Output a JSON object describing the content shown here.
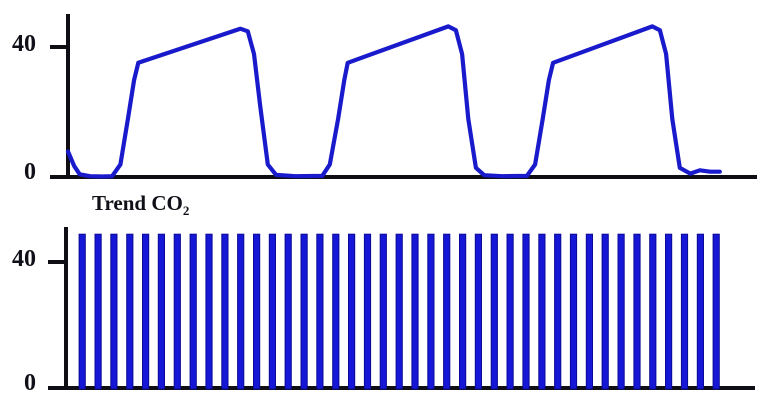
{
  "colors": {
    "trace_blue": "#1a1acd",
    "bar_blue": "#1616d6",
    "bar_edge": "#0a0a96",
    "axis_black": "#0e0e14",
    "label_color": "#101018",
    "background": "#ffffff"
  },
  "top_chart": {
    "y_tick_upper": "40",
    "y_tick_zero": "0"
  },
  "trend_chart": {
    "title": "Trend CO",
    "title_sub": "2",
    "y_tick_upper": "40",
    "y_tick_zero": "0"
  },
  "chart_data": [
    {
      "type": "line",
      "title": "",
      "ylabel": "",
      "xlabel": "",
      "y_ticks": [
        0,
        40
      ],
      "ylim": [
        0,
        50
      ],
      "legend": "none",
      "grid": false,
      "points": [
        [
          0,
          8
        ],
        [
          0.9,
          3.5
        ],
        [
          1.7,
          1
        ],
        [
          3.2,
          0.4
        ],
        [
          5.0,
          0.3
        ],
        [
          6.4,
          0.4
        ],
        [
          7.6,
          4
        ],
        [
          8.7,
          18
        ],
        [
          9.6,
          30
        ],
        [
          10.2,
          35.3
        ],
        [
          25.0,
          45.8
        ],
        [
          26.1,
          45.0
        ],
        [
          27.0,
          38
        ],
        [
          27.9,
          22
        ],
        [
          29.0,
          4
        ],
        [
          30.2,
          0.8
        ],
        [
          33.0,
          0.4
        ],
        [
          36.9,
          0.5
        ],
        [
          38.0,
          4
        ],
        [
          39.2,
          18
        ],
        [
          40.1,
          30
        ],
        [
          40.6,
          35.3
        ],
        [
          55.2,
          46.5
        ],
        [
          56.3,
          45.3
        ],
        [
          57.2,
          38
        ],
        [
          58.1,
          18
        ],
        [
          59.2,
          3
        ],
        [
          60.4,
          0.7
        ],
        [
          63.0,
          0.4
        ],
        [
          66.6,
          0.5
        ],
        [
          67.8,
          4
        ],
        [
          68.9,
          18
        ],
        [
          69.8,
          30
        ],
        [
          70.4,
          35.3
        ],
        [
          84.8,
          46.5
        ],
        [
          85.9,
          45.3
        ],
        [
          86.8,
          38
        ],
        [
          87.7,
          18
        ],
        [
          88.8,
          3
        ],
        [
          90.3,
          1.2
        ],
        [
          91.7,
          2.2
        ],
        [
          93.2,
          1.8
        ],
        [
          94.6,
          1.8
        ]
      ]
    },
    {
      "type": "bar",
      "title": "Trend CO2",
      "y_ticks": [
        0,
        40
      ],
      "ylim": [
        0,
        50
      ],
      "bar_count": 41,
      "values": [
        49,
        49,
        49,
        49,
        49,
        49,
        49,
        49,
        49,
        49,
        49,
        49,
        49,
        49,
        49,
        49,
        49,
        49,
        49,
        49,
        49,
        49,
        49,
        49,
        49,
        49,
        49,
        49,
        49,
        49,
        49,
        49,
        49,
        49,
        49,
        49,
        49,
        49,
        49,
        49,
        49
      ]
    }
  ]
}
